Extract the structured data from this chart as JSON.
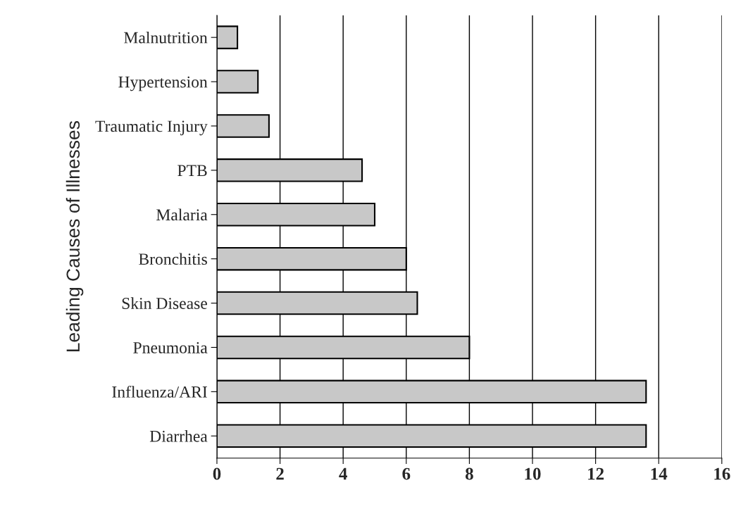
{
  "chart_data": {
    "type": "bar",
    "orientation": "horizontal",
    "ylabel": "Leading Causes of Illnesses",
    "categories": [
      "Malnutrition",
      "Hypertension",
      "Traumatic Injury",
      "PTB",
      "Malaria",
      "Bronchitis",
      "Skin Disease",
      "Pneumonia",
      "Influenza/ARI",
      "Diarrhea"
    ],
    "values": [
      0.65,
      1.3,
      1.65,
      4.6,
      5.0,
      6.0,
      6.35,
      8.0,
      13.6,
      13.6
    ],
    "color": "#c8c8c8",
    "xlim": [
      0,
      16
    ],
    "xticks": [
      0,
      2,
      4,
      6,
      8,
      10,
      12,
      14,
      16
    ],
    "grid": "x"
  }
}
